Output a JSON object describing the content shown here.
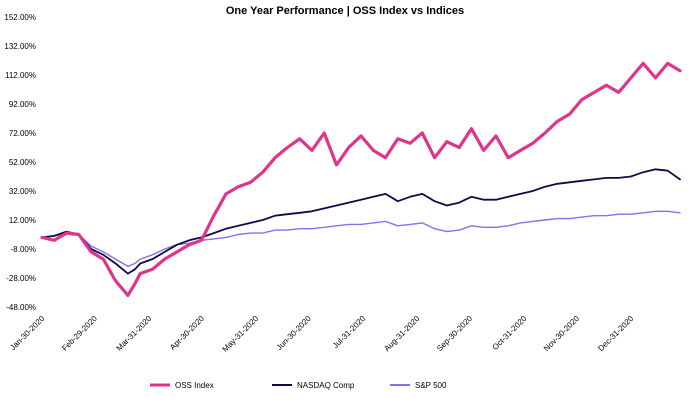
{
  "chart_data": {
    "type": "line",
    "title": "One Year Performance | OSS Index vs Indices",
    "xlabel": "",
    "ylabel": "",
    "ylim": [
      -48,
      152
    ],
    "y_ticks": [
      "152.00%",
      "132.00%",
      "112.00%",
      "92.00%",
      "72.00%",
      "52.00%",
      "32.00%",
      "12.00%",
      "-8.00%",
      "-28.00%",
      "-48.00%"
    ],
    "x_ticks": [
      "Jan-30-2020",
      "Feb-29-2020",
      "Mar-31-2020",
      "Apr-30-2020",
      "May-31-2020",
      "Jun-30-2020",
      "Jul-31-2020",
      "Aug-31-2020",
      "Sep-30-2020",
      "Oct-31-2020",
      "Nov-30-2020",
      "Dec-31-2020"
    ],
    "x": [
      "2020-01-30",
      "2020-02-06",
      "2020-02-13",
      "2020-02-20",
      "2020-02-27",
      "2020-03-05",
      "2020-03-12",
      "2020-03-19",
      "2020-03-23",
      "2020-03-26",
      "2020-04-02",
      "2020-04-09",
      "2020-04-16",
      "2020-04-23",
      "2020-04-30",
      "2020-05-07",
      "2020-05-14",
      "2020-05-21",
      "2020-05-28",
      "2020-06-04",
      "2020-06-11",
      "2020-06-18",
      "2020-06-25",
      "2020-07-02",
      "2020-07-09",
      "2020-07-16",
      "2020-07-23",
      "2020-07-30",
      "2020-08-06",
      "2020-08-13",
      "2020-08-20",
      "2020-08-27",
      "2020-09-03",
      "2020-09-10",
      "2020-09-17",
      "2020-09-24",
      "2020-10-01",
      "2020-10-08",
      "2020-10-15",
      "2020-10-22",
      "2020-10-29",
      "2020-11-05",
      "2020-11-12",
      "2020-11-19",
      "2020-11-26",
      "2020-12-03",
      "2020-12-10",
      "2020-12-17",
      "2020-12-24",
      "2020-12-31",
      "2021-01-07",
      "2021-01-14",
      "2021-01-21",
      "2021-01-28"
    ],
    "series": [
      {
        "name": "OSS Index",
        "color": "#e0348a",
        "values": [
          0,
          -2,
          3,
          2,
          -10,
          -15,
          -30,
          -40,
          -32,
          -25,
          -22,
          -15,
          -10,
          -5,
          -2,
          15,
          30,
          35,
          38,
          45,
          55,
          62,
          68,
          60,
          72,
          50,
          62,
          70,
          60,
          55,
          68,
          65,
          72,
          55,
          66,
          62,
          75,
          60,
          70,
          55,
          60,
          65,
          72,
          80,
          85,
          95,
          100,
          105,
          100,
          110,
          120,
          110,
          120,
          115
        ]
      },
      {
        "name": "NASDAQ Comp",
        "color": "#0c0c4a",
        "values": [
          0,
          1,
          4,
          2,
          -8,
          -12,
          -18,
          -25,
          -22,
          -18,
          -15,
          -10,
          -5,
          -2,
          0,
          3,
          6,
          8,
          10,
          12,
          15,
          16,
          17,
          18,
          20,
          22,
          24,
          26,
          28,
          30,
          25,
          28,
          30,
          25,
          22,
          24,
          28,
          26,
          26,
          28,
          30,
          32,
          35,
          37,
          38,
          39,
          40,
          41,
          41,
          42,
          45,
          47,
          46,
          40
        ]
      },
      {
        "name": "S&P 500",
        "color": "#8c6cf0",
        "values": [
          0,
          1,
          3,
          2,
          -6,
          -10,
          -15,
          -20,
          -18,
          -15,
          -12,
          -8,
          -5,
          -4,
          -2,
          -1,
          0,
          2,
          3,
          3,
          5,
          5,
          6,
          6,
          7,
          8,
          9,
          9,
          10,
          11,
          8,
          9,
          10,
          6,
          4,
          5,
          8,
          7,
          7,
          8,
          10,
          11,
          12,
          13,
          13,
          14,
          15,
          15,
          16,
          16,
          17,
          18,
          18,
          17
        ]
      }
    ],
    "legend_position": "bottom",
    "grid": false
  }
}
